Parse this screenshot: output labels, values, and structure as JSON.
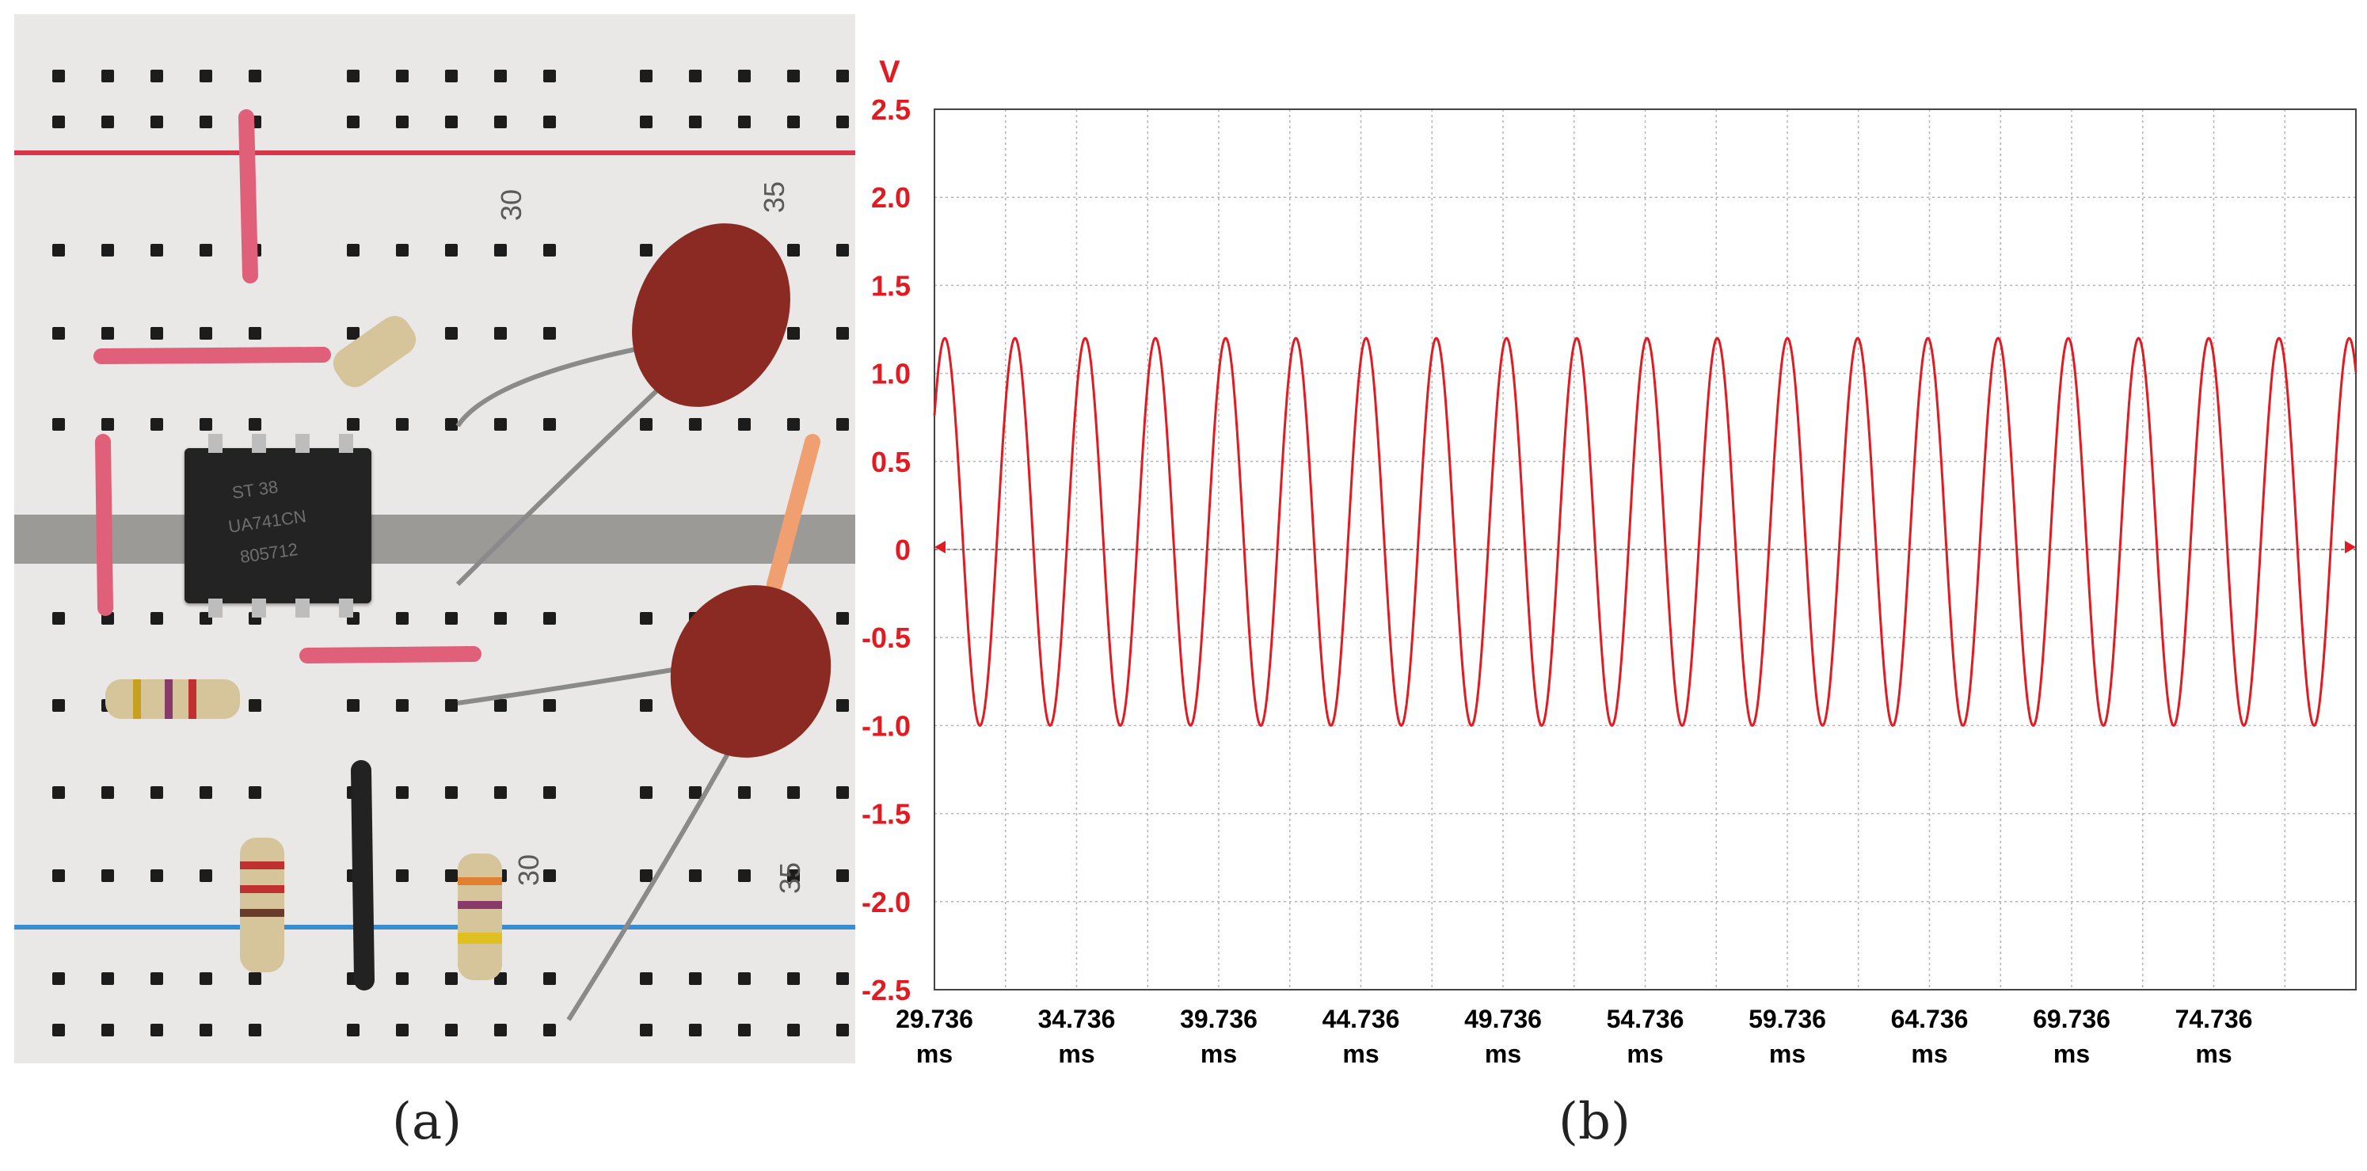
{
  "panel_a": {
    "caption": "(a)",
    "board_numbers": [
      "30",
      "35",
      "30",
      "35"
    ],
    "chip_lines": [
      "ST 38",
      "UA741CN",
      "805712"
    ]
  },
  "panel_b": {
    "caption": "(b)"
  },
  "colors": {
    "signal": "#e01b22",
    "ylabels": "#e01b22",
    "xlabels": "#000000",
    "grid": "#b5b5b5",
    "board": "#e9e8e6",
    "red_rail": "#d8344a",
    "blue_rail": "#3a8dcc"
  },
  "chart_data": {
    "type": "line",
    "ylabel": "V",
    "ylim": [
      -2.5,
      2.5
    ],
    "yticks": [
      2.5,
      2.0,
      1.5,
      1.0,
      0.5,
      0,
      -0.5,
      -1.0,
      -1.5,
      -2.0,
      -2.5
    ],
    "ytick_labels": [
      "2.5",
      "2.0",
      "1.5",
      "1.0",
      "0.5",
      "0",
      "-0.5",
      "-1.0",
      "-1.5",
      "-2.0",
      "-2.5"
    ],
    "xlim": [
      29.736,
      79.736
    ],
    "xticks": [
      29.736,
      34.736,
      39.736,
      44.736,
      49.736,
      54.736,
      59.736,
      64.736,
      69.736,
      74.736
    ],
    "xtick_labels": [
      "29.736",
      "34.736",
      "39.736",
      "44.736",
      "49.736",
      "54.736",
      "59.736",
      "64.736",
      "69.736",
      "74.736"
    ],
    "xtick_unit": "ms",
    "grid": true,
    "series": [
      {
        "waveform": "sine",
        "max": 1.2,
        "min": -1.0,
        "period_ms": 2.47,
        "first_peak_ms": 30.1
      }
    ]
  }
}
